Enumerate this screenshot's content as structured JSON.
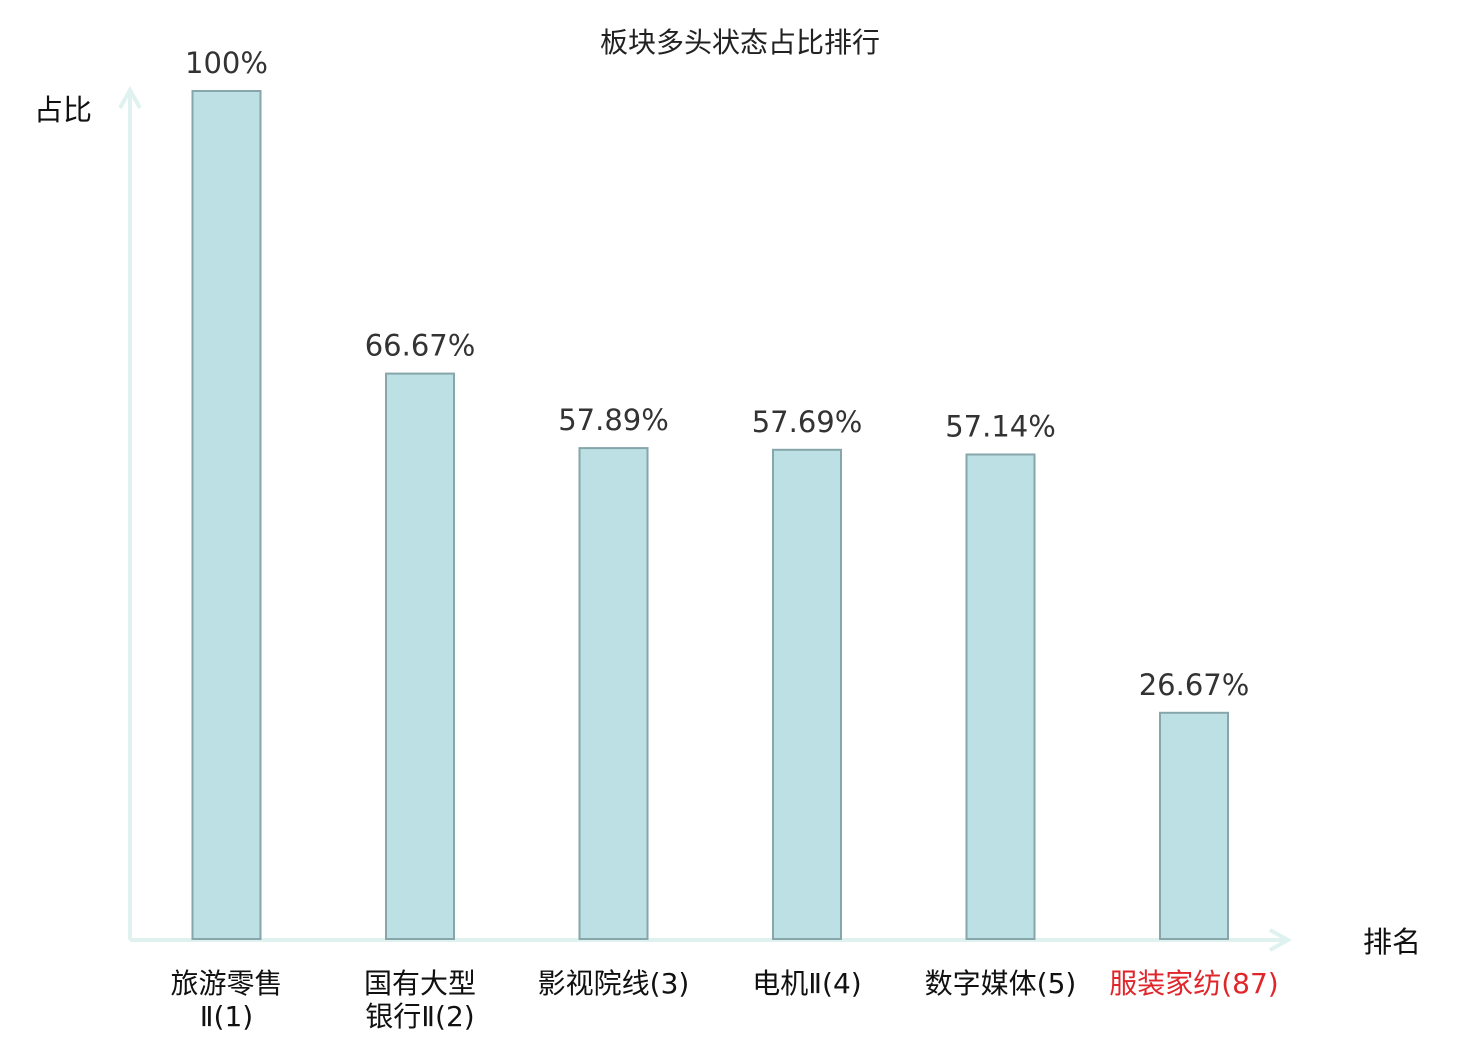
{
  "chart_data": {
    "type": "bar",
    "title": "板块多头状态占比排行",
    "ylabel": "占比",
    "xlabel": "排名",
    "categories": [
      "旅游零售Ⅱ(1)",
      "国有大型银行Ⅱ(2)",
      "影视院线(3)",
      "电机Ⅱ(4)",
      "数字媒体(5)",
      "服装家纺(87)"
    ],
    "category_lines": [
      [
        "旅游零售",
        "Ⅱ(1)"
      ],
      [
        "国有大型",
        "银行Ⅱ(2)"
      ],
      [
        "影视院线(3)"
      ],
      [
        "电机Ⅱ(4)"
      ],
      [
        "数字媒体(5)"
      ],
      [
        "服装家纺(87)"
      ]
    ],
    "values": [
      100,
      66.67,
      57.89,
      57.69,
      57.14,
      26.67
    ],
    "value_labels": [
      "100%",
      "66.67%",
      "57.89%",
      "57.69%",
      "57.14%",
      "26.67%"
    ],
    "highlight_index": 5,
    "ylim": [
      0,
      100
    ],
    "grid": false,
    "legend": "none",
    "colors": {
      "bar_fill": "#bce0e3",
      "bar_stroke": "#86a6aa",
      "axis": "#dff2f0",
      "highlight_text": "#e0262b",
      "normal_text": "#111111"
    }
  }
}
